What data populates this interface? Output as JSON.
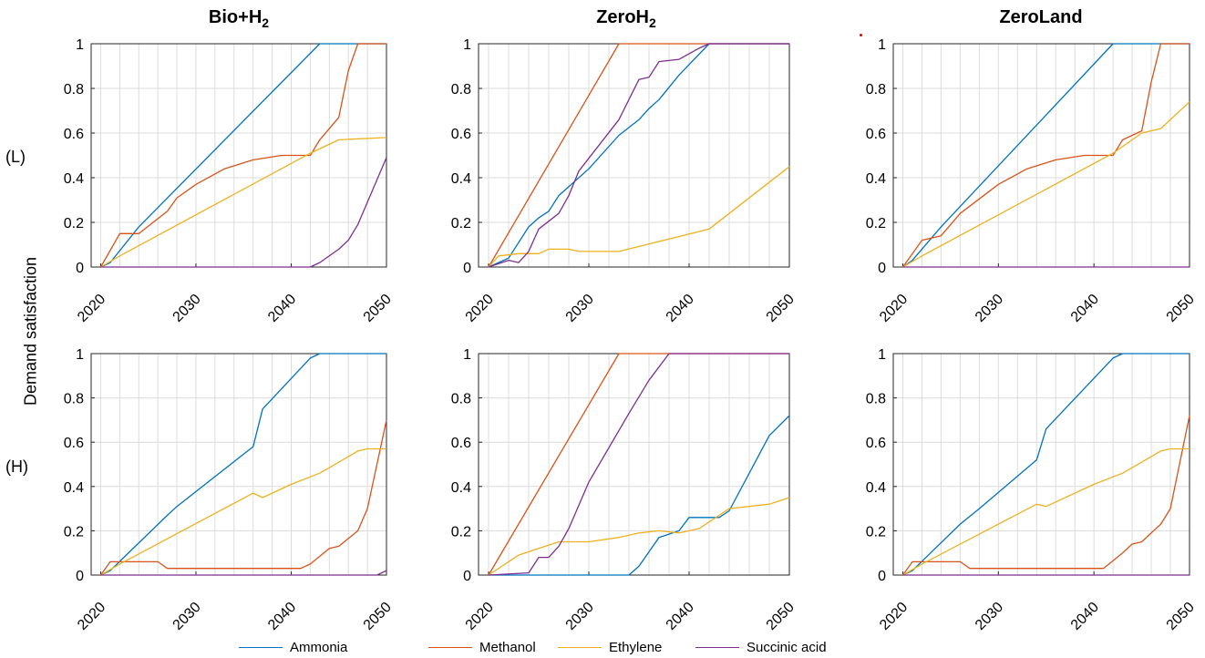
{
  "figure": {
    "ylabel": "Demand satisfaction",
    "row_labels": [
      "(L)",
      "(H)"
    ],
    "col_titles": [
      {
        "main": "Bio+H",
        "sub": "2"
      },
      {
        "main": "ZeroH",
        "sub": "2"
      },
      {
        "main": "ZeroLand",
        "sub": ""
      }
    ]
  },
  "colors": {
    "Ammonia": "#0072BD",
    "Methanol": "#D95319",
    "Ethylene": "#EDB120",
    "Succinic acid": "#7E2F8E"
  },
  "legend": [
    "Ammonia",
    "Methanol",
    "Ethylene",
    "Succinic acid"
  ],
  "chart_data": [
    {
      "type": "line",
      "panel": "L-Bio+H2",
      "xlim": [
        2019,
        2050
      ],
      "ylim": [
        0,
        1
      ],
      "grid": true,
      "xticks": [
        "2020",
        "2030",
        "2040",
        "2050"
      ],
      "yticks": [
        "0",
        "0.2",
        "0.4",
        "0.6",
        "0.8",
        "1"
      ],
      "series": [
        {
          "name": "Ammonia",
          "points": [
            [
              2020,
              0
            ],
            [
              2021,
              0.02
            ],
            [
              2024,
              0.18
            ],
            [
              2043,
              1
            ],
            [
              2050,
              1
            ]
          ]
        },
        {
          "name": "Methanol",
          "points": [
            [
              2020,
              0
            ],
            [
              2022,
              0.15
            ],
            [
              2024,
              0.15
            ],
            [
              2027,
              0.25
            ],
            [
              2028,
              0.31
            ],
            [
              2030,
              0.37
            ],
            [
              2033,
              0.44
            ],
            [
              2036,
              0.48
            ],
            [
              2039,
              0.5
            ],
            [
              2042,
              0.5
            ],
            [
              2043,
              0.57
            ],
            [
              2045,
              0.67
            ],
            [
              2046,
              0.88
            ],
            [
              2047,
              1
            ],
            [
              2050,
              1
            ]
          ]
        },
        {
          "name": "Ethylene",
          "points": [
            [
              2020,
              0
            ],
            [
              2022,
              0.05
            ],
            [
              2042,
              0.51
            ],
            [
              2045,
              0.57
            ],
            [
              2050,
              0.58
            ]
          ]
        },
        {
          "name": "Succinic acid",
          "points": [
            [
              2020,
              0
            ],
            [
              2042,
              0
            ],
            [
              2043,
              0.02
            ],
            [
              2045,
              0.08
            ],
            [
              2046,
              0.12
            ],
            [
              2047,
              0.19
            ],
            [
              2050,
              0.49
            ]
          ]
        }
      ]
    },
    {
      "type": "line",
      "panel": "L-ZeroH2",
      "xlim": [
        2019,
        2050
      ],
      "ylim": [
        0,
        1
      ],
      "grid": true,
      "xticks": [
        "2020",
        "2030",
        "2040",
        "2050"
      ],
      "yticks": [
        "0",
        "0.2",
        "0.4",
        "0.6",
        "0.8",
        "1"
      ],
      "series": [
        {
          "name": "Ammonia",
          "points": [
            [
              2020,
              0
            ],
            [
              2022,
              0.04
            ],
            [
              2024,
              0.18
            ],
            [
              2025,
              0.22
            ],
            [
              2026,
              0.25
            ],
            [
              2027,
              0.32
            ],
            [
              2030,
              0.44
            ],
            [
              2033,
              0.59
            ],
            [
              2035,
              0.66
            ],
            [
              2036,
              0.71
            ],
            [
              2037,
              0.75
            ],
            [
              2039,
              0.86
            ],
            [
              2042,
              1
            ],
            [
              2050,
              1
            ]
          ]
        },
        {
          "name": "Methanol",
          "points": [
            [
              2020,
              0
            ],
            [
              2033,
              1
            ],
            [
              2050,
              1
            ]
          ]
        },
        {
          "name": "Ethylene",
          "points": [
            [
              2020,
              0
            ],
            [
              2021,
              0.05
            ],
            [
              2023,
              0.06
            ],
            [
              2025,
              0.06
            ],
            [
              2026,
              0.08
            ],
            [
              2028,
              0.08
            ],
            [
              2029,
              0.07
            ],
            [
              2033,
              0.07
            ],
            [
              2042,
              0.17
            ],
            [
              2050,
              0.45
            ]
          ]
        },
        {
          "name": "Succinic acid",
          "points": [
            [
              2020,
              0
            ],
            [
              2022,
              0.03
            ],
            [
              2023,
              0.02
            ],
            [
              2024,
              0.07
            ],
            [
              2025,
              0.17
            ],
            [
              2027,
              0.24
            ],
            [
              2028,
              0.32
            ],
            [
              2029,
              0.43
            ],
            [
              2033,
              0.66
            ],
            [
              2035,
              0.84
            ],
            [
              2036,
              0.85
            ],
            [
              2037,
              0.92
            ],
            [
              2039,
              0.93
            ],
            [
              2041,
              0.98
            ],
            [
              2042,
              1
            ],
            [
              2050,
              1
            ]
          ]
        }
      ]
    },
    {
      "type": "line",
      "panel": "L-ZeroLand",
      "xlim": [
        2019,
        2050
      ],
      "ylim": [
        0,
        1
      ],
      "grid": true,
      "xticks": [
        "2020",
        "2030",
        "2040",
        "2050"
      ],
      "yticks": [
        "0",
        "0.2",
        "0.4",
        "0.6",
        "0.8",
        "1"
      ],
      "series": [
        {
          "name": "Ammonia",
          "points": [
            [
              2020,
              0
            ],
            [
              2021,
              0.03
            ],
            [
              2024,
              0.18
            ],
            [
              2042,
              1
            ],
            [
              2050,
              1
            ]
          ]
        },
        {
          "name": "Methanol",
          "points": [
            [
              2020,
              0
            ],
            [
              2022,
              0.12
            ],
            [
              2024,
              0.14
            ],
            [
              2026,
              0.24
            ],
            [
              2030,
              0.37
            ],
            [
              2033,
              0.44
            ],
            [
              2036,
              0.48
            ],
            [
              2039,
              0.5
            ],
            [
              2042,
              0.5
            ],
            [
              2043,
              0.57
            ],
            [
              2045,
              0.61
            ],
            [
              2046,
              0.83
            ],
            [
              2047,
              1
            ],
            [
              2050,
              1
            ]
          ]
        },
        {
          "name": "Ethylene",
          "points": [
            [
              2020,
              0
            ],
            [
              2022,
              0.05
            ],
            [
              2042,
              0.51
            ],
            [
              2045,
              0.6
            ],
            [
              2047,
              0.62
            ],
            [
              2050,
              0.74
            ]
          ]
        },
        {
          "name": "Succinic acid",
          "points": [
            [
              2020,
              0
            ],
            [
              2050,
              0
            ]
          ]
        }
      ]
    },
    {
      "type": "line",
      "panel": "H-Bio+H2",
      "xlim": [
        2019,
        2050
      ],
      "ylim": [
        0,
        1
      ],
      "grid": true,
      "xticks": [
        "2020",
        "2030",
        "2040",
        "2050"
      ],
      "yticks": [
        "0",
        "0.2",
        "0.4",
        "0.6",
        "0.8",
        "1"
      ],
      "series": [
        {
          "name": "Ammonia",
          "points": [
            [
              2020,
              0
            ],
            [
              2021,
              0.02
            ],
            [
              2027,
              0.27
            ],
            [
              2028,
              0.31
            ],
            [
              2036,
              0.58
            ],
            [
              2037,
              0.75
            ],
            [
              2042,
              0.98
            ],
            [
              2043,
              1
            ],
            [
              2050,
              1
            ]
          ]
        },
        {
          "name": "Methanol",
          "points": [
            [
              2020,
              0
            ],
            [
              2021,
              0.06
            ],
            [
              2026,
              0.06
            ],
            [
              2027,
              0.03
            ],
            [
              2041,
              0.03
            ],
            [
              2042,
              0.05
            ],
            [
              2044,
              0.12
            ],
            [
              2045,
              0.13
            ],
            [
              2047,
              0.2
            ],
            [
              2048,
              0.3
            ],
            [
              2050,
              0.7
            ]
          ]
        },
        {
          "name": "Ethylene",
          "points": [
            [
              2020,
              0
            ],
            [
              2022,
              0.05
            ],
            [
              2036,
              0.37
            ],
            [
              2037,
              0.35
            ],
            [
              2040,
              0.41
            ],
            [
              2043,
              0.46
            ],
            [
              2045,
              0.51
            ],
            [
              2047,
              0.56
            ],
            [
              2048,
              0.57
            ],
            [
              2050,
              0.57
            ]
          ]
        },
        {
          "name": "Succinic acid",
          "points": [
            [
              2020,
              0
            ],
            [
              2049,
              0
            ],
            [
              2050,
              0.02
            ]
          ]
        }
      ]
    },
    {
      "type": "line",
      "panel": "H-ZeroH2",
      "xlim": [
        2019,
        2050
      ],
      "ylim": [
        0,
        1
      ],
      "grid": true,
      "xticks": [
        "2020",
        "2030",
        "2040",
        "2050"
      ],
      "yticks": [
        "0",
        "0.2",
        "0.4",
        "0.6",
        "0.8",
        "1"
      ],
      "series": [
        {
          "name": "Ammonia",
          "points": [
            [
              2020,
              0
            ],
            [
              2034,
              0
            ],
            [
              2035,
              0.04
            ],
            [
              2037,
              0.17
            ],
            [
              2039,
              0.2
            ],
            [
              2040,
              0.26
            ],
            [
              2042,
              0.26
            ],
            [
              2043,
              0.26
            ],
            [
              2044,
              0.29
            ],
            [
              2048,
              0.63
            ],
            [
              2050,
              0.72
            ]
          ]
        },
        {
          "name": "Methanol",
          "points": [
            [
              2020,
              0
            ],
            [
              2033,
              1
            ],
            [
              2050,
              1
            ]
          ]
        },
        {
          "name": "Ethylene",
          "points": [
            [
              2020,
              0
            ],
            [
              2023,
              0.09
            ],
            [
              2025,
              0.12
            ],
            [
              2027,
              0.15
            ],
            [
              2030,
              0.15
            ],
            [
              2033,
              0.17
            ],
            [
              2035,
              0.19
            ],
            [
              2037,
              0.2
            ],
            [
              2039,
              0.19
            ],
            [
              2041,
              0.21
            ],
            [
              2044,
              0.3
            ],
            [
              2048,
              0.32
            ],
            [
              2050,
              0.35
            ]
          ]
        },
        {
          "name": "Succinic acid",
          "points": [
            [
              2020,
              0
            ],
            [
              2024,
              0.01
            ],
            [
              2025,
              0.08
            ],
            [
              2026,
              0.08
            ],
            [
              2027,
              0.13
            ],
            [
              2028,
              0.21
            ],
            [
              2030,
              0.42
            ],
            [
              2034,
              0.73
            ],
            [
              2036,
              0.88
            ],
            [
              2038,
              1
            ],
            [
              2050,
              1
            ]
          ]
        }
      ]
    },
    {
      "type": "line",
      "panel": "H-ZeroLand",
      "xlim": [
        2019,
        2050
      ],
      "ylim": [
        0,
        1
      ],
      "grid": true,
      "xticks": [
        "2020",
        "2030",
        "2040",
        "2050"
      ],
      "yticks": [
        "0",
        "0.2",
        "0.4",
        "0.6",
        "0.8",
        "1"
      ],
      "series": [
        {
          "name": "Ammonia",
          "points": [
            [
              2020,
              0
            ],
            [
              2021,
              0.02
            ],
            [
              2026,
              0.23
            ],
            [
              2028,
              0.3
            ],
            [
              2034,
              0.52
            ],
            [
              2035,
              0.66
            ],
            [
              2042,
              0.98
            ],
            [
              2043,
              1
            ],
            [
              2050,
              1
            ]
          ]
        },
        {
          "name": "Methanol",
          "points": [
            [
              2020,
              0
            ],
            [
              2021,
              0.06
            ],
            [
              2026,
              0.06
            ],
            [
              2027,
              0.03
            ],
            [
              2041,
              0.03
            ],
            [
              2043,
              0.1
            ],
            [
              2044,
              0.14
            ],
            [
              2045,
              0.15
            ],
            [
              2047,
              0.23
            ],
            [
              2048,
              0.3
            ],
            [
              2050,
              0.72
            ]
          ]
        },
        {
          "name": "Ethylene",
          "points": [
            [
              2020,
              0
            ],
            [
              2022,
              0.05
            ],
            [
              2034,
              0.32
            ],
            [
              2035,
              0.31
            ],
            [
              2040,
              0.41
            ],
            [
              2043,
              0.46
            ],
            [
              2045,
              0.51
            ],
            [
              2047,
              0.56
            ],
            [
              2048,
              0.57
            ],
            [
              2050,
              0.57
            ]
          ]
        },
        {
          "name": "Succinic acid",
          "points": [
            [
              2020,
              0
            ],
            [
              2050,
              0
            ]
          ]
        }
      ]
    }
  ]
}
